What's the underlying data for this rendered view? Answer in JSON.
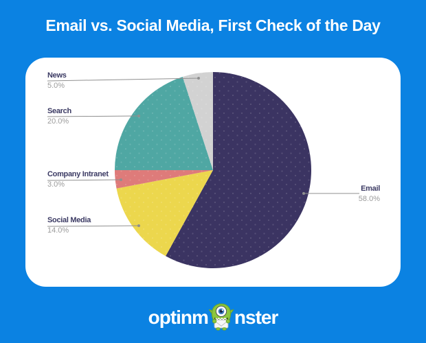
{
  "page": {
    "title": "Email vs. Social Media, First Check of the Day",
    "colors": {
      "background": "#0b82e2",
      "card": "#ffffff",
      "title_text": "#ffffff",
      "label_text": "#3b3a63",
      "percent_text": "#9b9b9b",
      "callout_line": "#8f8f8f"
    },
    "logo": {
      "brand": "optinmonster",
      "text_before": "optinm",
      "text_after": "nster"
    }
  },
  "chart_data": {
    "type": "pie",
    "title": "Email vs. Social Media, First Check of the Day",
    "direction": "clockwise",
    "start_angle_deg": 0,
    "legend_position": "callout-labels",
    "slices": [
      {
        "label": "Email",
        "value": 58.0,
        "display": "58.0%",
        "color": "#3b3462"
      },
      {
        "label": "Social Media",
        "value": 14.0,
        "display": "14.0%",
        "color": "#ecd74d"
      },
      {
        "label": "Company Intranet",
        "value": 3.0,
        "display": "3.0%",
        "color": "#de7b7a"
      },
      {
        "label": "Search",
        "value": 20.0,
        "display": "20.0%",
        "color": "#4fa7a3"
      },
      {
        "label": "News",
        "value": 5.0,
        "display": "5.0%",
        "color": "#d2d2d2"
      }
    ]
  }
}
